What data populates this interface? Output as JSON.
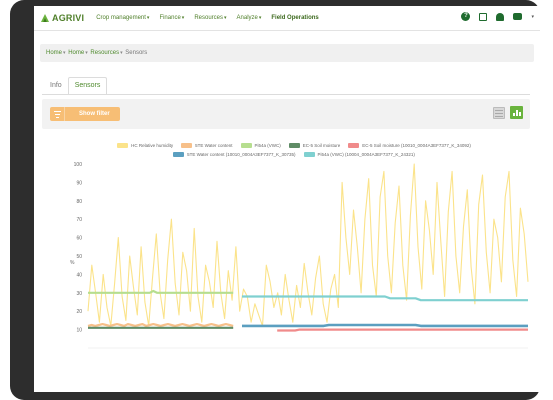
{
  "app": {
    "logo_text": "AGRIVI"
  },
  "nav": {
    "items": [
      {
        "label": "Crop management",
        "has_caret": true
      },
      {
        "label": "Finance",
        "has_caret": true
      },
      {
        "label": "Resources",
        "has_caret": true
      },
      {
        "label": "Analyze",
        "has_caret": true
      },
      {
        "label": "Field Operations",
        "has_caret": false
      }
    ],
    "help_icon_text": "?",
    "icons": [
      "help-icon",
      "calendar-icon",
      "bell-icon",
      "chat-icon",
      "user-menu-caret-icon"
    ]
  },
  "breadcrumb": [
    {
      "label": "Home",
      "link": true
    },
    {
      "label": "Home",
      "link": true
    },
    {
      "label": "Resources",
      "link": true
    },
    {
      "label": "Sensors",
      "link": false
    }
  ],
  "tabs": [
    {
      "label": "Info",
      "active": false
    },
    {
      "label": "Sensors",
      "active": true
    }
  ],
  "toolbar": {
    "filter_label": "Show filter",
    "filter_icon": "filter-lines-icon",
    "table_view_icon": "table-view-icon",
    "chart_view_icon": "bar-chart-icon",
    "colors": {
      "filter": "#f7be75",
      "chart_view": "#69b33d"
    }
  },
  "chart_data": {
    "type": "line",
    "ylabel": "%",
    "ylim": [
      0,
      100
    ],
    "yticks": [
      10,
      20,
      30,
      40,
      50,
      60,
      70,
      80,
      90,
      100
    ],
    "grid": false,
    "legend_placement": "top",
    "legend_rows": [
      [
        {
          "name": "HC Relative humidity",
          "color": "#fbe38a"
        },
        {
          "name": "5TE Water content",
          "color": "#f7c08a"
        },
        {
          "name": "Pi54a (VWC)",
          "color": "#b6de8f"
        },
        {
          "name": "EC-5 Soil moisture",
          "color": "#5f8c66"
        },
        {
          "name": "EC-5 Soil moisture (10010_0004A3EF7377_K_34092)",
          "color": "#f08b8b"
        }
      ],
      [
        {
          "name": "5TE Water content (10010_0004A3EF7377_K_30735)",
          "color": "#5b9fc0"
        },
        {
          "name": "Pi54a (VWC) (10004_0004A3EF7377_K_24321)",
          "color": "#7fd0d0"
        }
      ]
    ],
    "series": [
      {
        "name": "HC Relative humidity",
        "color": "#fbe38a",
        "values": [
          20,
          45,
          30,
          14,
          40,
          22,
          12,
          35,
          60,
          28,
          15,
          50,
          33,
          18,
          55,
          25,
          12,
          38,
          62,
          30,
          16,
          48,
          70,
          35,
          18,
          52,
          42,
          20,
          65,
          28,
          14,
          45,
          36,
          22,
          58,
          30,
          16,
          42,
          26,
          55,
          20,
          32,
          28,
          14,
          24,
          18,
          12,
          45,
          36,
          22,
          30,
          18,
          40,
          26,
          14,
          34,
          22,
          46,
          30,
          18,
          38,
          50,
          24,
          14,
          32,
          40,
          22,
          90,
          60,
          40,
          75,
          55,
          30,
          70,
          92,
          45,
          28,
          82,
          96,
          50,
          30,
          68,
          88,
          45,
          26,
          72,
          100,
          55,
          32,
          80,
          64,
          40,
          90,
          58,
          28,
          74,
          96,
          50,
          30,
          66,
          86,
          44,
          24,
          78,
          94,
          52,
          30,
          70,
          60,
          36,
          82,
          96,
          48,
          28,
          76,
          62,
          36
        ]
      },
      {
        "name": "Pi54a (VWC)",
        "color": "#b6de8f",
        "values": [
          30,
          30,
          30,
          30,
          30,
          30,
          30,
          30,
          30,
          30,
          30,
          30,
          30,
          30,
          30,
          30,
          30,
          30,
          31,
          30,
          30,
          30,
          30,
          30,
          30,
          30,
          30,
          30,
          30,
          30,
          30,
          30,
          30,
          30,
          30,
          30,
          30,
          30,
          30,
          30,
          30
        ]
      },
      {
        "name": "Pi54a (VWC) (10004_0004A3EF7377_K_24321)",
        "color": "#7fd0d0",
        "values": [
          28,
          28,
          28,
          28,
          28,
          28,
          28,
          28,
          28,
          28,
          28,
          28,
          28,
          28,
          28,
          28,
          28,
          28,
          28,
          28,
          28,
          28,
          28,
          28,
          28,
          28,
          28,
          28,
          28,
          27,
          27,
          27,
          27,
          27,
          27,
          26,
          26,
          26,
          26,
          26,
          26,
          26,
          26,
          26,
          26,
          26,
          26,
          26,
          26,
          26,
          26,
          26,
          26,
          26,
          26,
          26,
          26
        ]
      },
      {
        "name": "5TE Water content",
        "color": "#f7c08a",
        "values": [
          12,
          12.5,
          12,
          12.5,
          13,
          12.5,
          12,
          12.5,
          13,
          12.5,
          12,
          13,
          12.5,
          12,
          12.5,
          13,
          12,
          12.5,
          13,
          12.5,
          12,
          12.5,
          13,
          12.5,
          12,
          12.5,
          13,
          12.5,
          12,
          12.5,
          13,
          12.5,
          12,
          12.5,
          13,
          12.5,
          12,
          12.5,
          13,
          12.5,
          12
        ]
      },
      {
        "name": "EC-5 Soil moisture",
        "color": "#5f8c66",
        "values": [
          11,
          11,
          11,
          11,
          11,
          11,
          11,
          11,
          11,
          11,
          11,
          11,
          11,
          11,
          11,
          11,
          11,
          11,
          11,
          11,
          11,
          11,
          11,
          11,
          11,
          11,
          11,
          11,
          11,
          11,
          11,
          11,
          11,
          11,
          11,
          11,
          11,
          11,
          11,
          11,
          11
        ]
      },
      {
        "name": "5TE Water content (10010_0004A3EF7377_K_30735)",
        "color": "#5b9fc0",
        "values": [
          12,
          12,
          12,
          12,
          12,
          12,
          12,
          12,
          12,
          12,
          12,
          12,
          12,
          12,
          12,
          12,
          12,
          12.5,
          12.5,
          12.5,
          12.5,
          12.5,
          12.5,
          12.5,
          12.5,
          12.5,
          12.5,
          12.5,
          12.5,
          12.5,
          12.5,
          12.5,
          12.5,
          12.5,
          12.5,
          12,
          12,
          12,
          12,
          12,
          12,
          12,
          12,
          12,
          12,
          12,
          12,
          12,
          12,
          12,
          12,
          12,
          12,
          12,
          12,
          12,
          12
        ]
      },
      {
        "name": "EC-5 Soil moisture (10010_0004A3EF7377_K_34092)",
        "color": "#f08b8b",
        "values": [
          9.5,
          9.5,
          9.5,
          9.5,
          9.5,
          10,
          10,
          10,
          10,
          10,
          10,
          10,
          10,
          10,
          10,
          10,
          10,
          10,
          10,
          10,
          10,
          10,
          10,
          10,
          10,
          10,
          10,
          10,
          10,
          10,
          10,
          10,
          10,
          10,
          10,
          10,
          10,
          10,
          10,
          10,
          10,
          10,
          10,
          10,
          10,
          10,
          10,
          10,
          10,
          10,
          10,
          10,
          10,
          10,
          10,
          10,
          10
        ]
      }
    ]
  }
}
